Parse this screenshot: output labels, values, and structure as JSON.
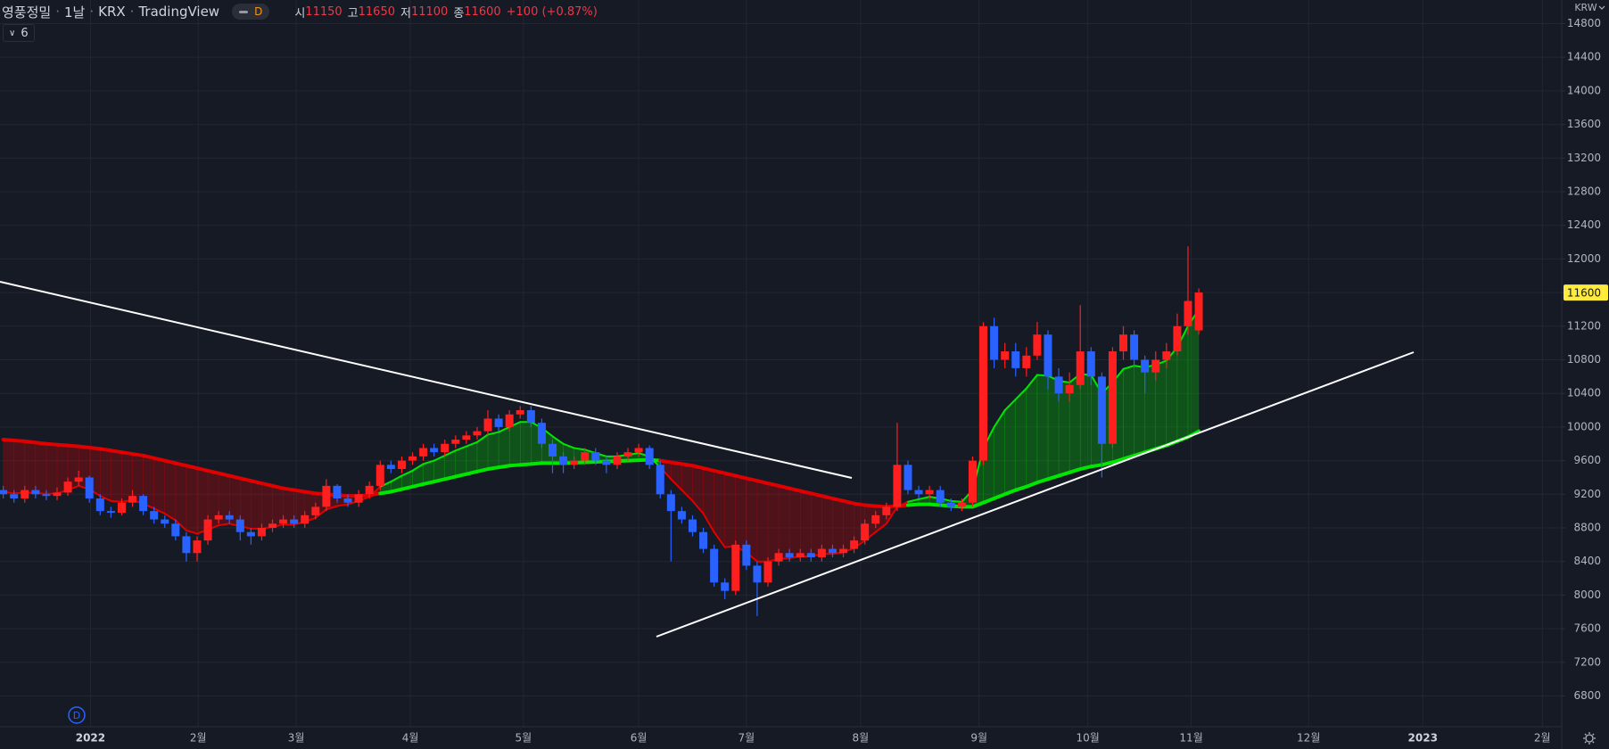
{
  "chart_data": {
    "type": "candlestick",
    "title": "영풍정밀",
    "separator": "·",
    "interval": "1날",
    "exchange": "KRX",
    "source": "TradingView",
    "badge": "D",
    "ohlc_labels": [
      "시",
      "고",
      "저",
      "종"
    ],
    "change_label": "+100 (+0.87%)",
    "currency": "KRW",
    "study_count": 6,
    "event_marker": "D",
    "up_color": "#ff1f1f",
    "down_color": "#2962ff",
    "grid": true,
    "xlim": [
      -0.3,
      144.7
    ],
    "xticks": [
      {
        "value": 8.1,
        "label": "2022"
      },
      {
        "value": 18.1,
        "label": "2월"
      },
      {
        "value": 27.2,
        "label": "3월"
      },
      {
        "value": 37.8,
        "label": "4월"
      },
      {
        "value": 48.3,
        "label": "5월"
      },
      {
        "value": 59,
        "label": "6월"
      },
      {
        "value": 69,
        "label": "7월"
      },
      {
        "value": 79.6,
        "label": "8월"
      },
      {
        "value": 90.6,
        "label": "9월"
      },
      {
        "value": 100.7,
        "label": "10월"
      },
      {
        "value": 110.3,
        "label": "11월"
      },
      {
        "value": 121.2,
        "label": "12월"
      },
      {
        "value": 131.8,
        "label": "2023"
      },
      {
        "value": 142.9,
        "label": "2월"
      }
    ],
    "ylim": [
      6434,
      15081
    ],
    "yticks": [
      6800,
      7200,
      7600,
      8000,
      8400,
      8800,
      9200,
      9600,
      10000,
      10400,
      10800,
      11200,
      11600,
      12000,
      12400,
      12800,
      13200,
      13600,
      14000,
      14400,
      14800
    ],
    "open": [
      9250,
      9200,
      9150,
      9250,
      9200,
      9180,
      9220,
      9350,
      9400,
      9150,
      9000,
      8980,
      9100,
      9180,
      9000,
      8900,
      8850,
      8700,
      8500,
      8650,
      8900,
      8950,
      8900,
      8750,
      8700,
      8800,
      8850,
      8900,
      8850,
      8950,
      9050,
      9300,
      9150,
      9100,
      9200,
      9300,
      9550,
      9500,
      9600,
      9650,
      9750,
      9700,
      9800,
      9850,
      9900,
      9950,
      10100,
      10000,
      10150,
      10200,
      10050,
      9800,
      9650,
      9550,
      9600,
      9700,
      9600,
      9550,
      9650,
      9700,
      9750,
      9550,
      9200,
      9000,
      8900,
      8750,
      8550,
      8150,
      8050,
      8600,
      8350,
      8150,
      8400,
      8500,
      8450,
      8500,
      8450,
      8550,
      8500,
      8550,
      8650,
      8850,
      8950,
      9050,
      9550,
      9250,
      9200,
      9250,
      9100,
      9050,
      9100,
      9600,
      11200,
      10800,
      10900,
      10700,
      10850,
      11100,
      10600,
      10400,
      10500,
      10900,
      10600,
      9800,
      10900,
      11100,
      10800,
      10650,
      10800,
      10900,
      11200,
      11150
    ],
    "high": [
      9300,
      9250,
      9300,
      9300,
      9250,
      9280,
      9400,
      9480,
      9420,
      9200,
      9050,
      9150,
      9250,
      9200,
      9050,
      8950,
      8900,
      8750,
      8700,
      8950,
      9000,
      9000,
      8950,
      8800,
      8850,
      8900,
      8950,
      8950,
      9000,
      9100,
      9380,
      9320,
      9200,
      9250,
      9350,
      9600,
      9600,
      9650,
      9700,
      9800,
      9800,
      9850,
      9900,
      9950,
      10000,
      10200,
      10150,
      10200,
      10250,
      10250,
      10100,
      9850,
      9700,
      9650,
      9750,
      9750,
      9650,
      9700,
      9750,
      9800,
      9780,
      9600,
      9250,
      9050,
      8950,
      8800,
      8600,
      8200,
      8650,
      8650,
      8400,
      8450,
      8550,
      8550,
      8550,
      8550,
      8600,
      8600,
      8600,
      8700,
      8900,
      9000,
      9100,
      10050,
      9600,
      9300,
      9300,
      9300,
      9150,
      9150,
      9650,
      11250,
      11300,
      11000,
      11000,
      10950,
      11250,
      11150,
      10700,
      10650,
      11450,
      10950,
      10650,
      10950,
      11200,
      11150,
      10850,
      10900,
      11000,
      11350,
      12150,
      11650
    ],
    "low": [
      9150,
      9100,
      9100,
      9150,
      9130,
      9130,
      9180,
      9300,
      9100,
      8950,
      8920,
      8950,
      9050,
      8950,
      8850,
      8800,
      8650,
      8400,
      8400,
      8600,
      8850,
      8850,
      8650,
      8600,
      8650,
      8750,
      8800,
      8800,
      8800,
      8900,
      9000,
      9100,
      9050,
      9050,
      9150,
      9250,
      9450,
      9450,
      9550,
      9600,
      9650,
      9650,
      9750,
      9800,
      9850,
      9900,
      9950,
      9950,
      10100,
      10000,
      9750,
      9450,
      9450,
      9500,
      9550,
      9550,
      9450,
      9500,
      9600,
      9650,
      9500,
      9150,
      8400,
      8850,
      8700,
      8500,
      8100,
      7950,
      8000,
      8300,
      7750,
      8100,
      8350,
      8400,
      8400,
      8400,
      8400,
      8450,
      8450,
      8500,
      8600,
      8800,
      8900,
      9000,
      9200,
      9150,
      9150,
      9050,
      9000,
      9000,
      9050,
      9550,
      10700,
      10700,
      10600,
      10600,
      10800,
      10450,
      10300,
      10300,
      10450,
      10500,
      9400,
      9750,
      10800,
      10700,
      10400,
      10550,
      10700,
      10850,
      11100,
      11100
    ],
    "close": [
      9200,
      9150,
      9250,
      9200,
      9180,
      9220,
      9350,
      9400,
      9150,
      9000,
      8980,
      9100,
      9180,
      9000,
      8900,
      8850,
      8700,
      8500,
      8650,
      8900,
      8950,
      8900,
      8750,
      8700,
      8800,
      8850,
      8900,
      8850,
      8950,
      9050,
      9300,
      9150,
      9100,
      9200,
      9300,
      9550,
      9500,
      9600,
      9650,
      9750,
      9700,
      9800,
      9850,
      9900,
      9950,
      10100,
      10000,
      10150,
      10200,
      10050,
      9800,
      9650,
      9550,
      9600,
      9700,
      9600,
      9550,
      9650,
      9700,
      9750,
      9550,
      9200,
      9000,
      8900,
      8750,
      8550,
      8150,
      8050,
      8600,
      8350,
      8150,
      8400,
      8500,
      8450,
      8500,
      8450,
      8550,
      8500,
      8550,
      8650,
      8850,
      8950,
      9050,
      9550,
      9250,
      9200,
      9250,
      9100,
      9050,
      9100,
      9600,
      11200,
      10800,
      10900,
      10700,
      10850,
      11100,
      10600,
      10400,
      10500,
      10900,
      10600,
      9800,
      10900,
      11100,
      10800,
      10650,
      10800,
      10900,
      11200,
      11500,
      11600
    ],
    "ribbon": {
      "up_color": "#00e600",
      "down_color": "#e00000",
      "fast": [
        9230,
        9210,
        9220,
        9215,
        9205,
        9210,
        9250,
        9300,
        9260,
        9180,
        9120,
        9110,
        9130,
        9090,
        9030,
        8970,
        8890,
        8770,
        8730,
        8780,
        8830,
        8850,
        8820,
        8790,
        8790,
        8810,
        8840,
        8840,
        8870,
        8920,
        9020,
        9060,
        9080,
        9120,
        9170,
        9290,
        9350,
        9420,
        9480,
        9560,
        9600,
        9660,
        9720,
        9770,
        9820,
        9910,
        9940,
        10000,
        10060,
        10060,
        9990,
        9890,
        9800,
        9750,
        9730,
        9690,
        9650,
        9650,
        9670,
        9690,
        9650,
        9520,
        9380,
        9250,
        9120,
        8970,
        8750,
        8570,
        8580,
        8510,
        8400,
        8400,
        8430,
        8440,
        8460,
        8460,
        8490,
        8490,
        8510,
        8560,
        8650,
        8750,
        8850,
        9050,
        9110,
        9140,
        9170,
        9150,
        9120,
        9110,
        9250,
        9750,
        10000,
        10200,
        10330,
        10460,
        10620,
        10610,
        10550,
        10530,
        10630,
        10620,
        10400,
        10530,
        10690,
        10730,
        10710,
        10740,
        10790,
        10950,
        11200,
        11400
      ],
      "slow": [
        9850,
        9840,
        9830,
        9815,
        9800,
        9790,
        9780,
        9770,
        9755,
        9740,
        9720,
        9700,
        9680,
        9660,
        9630,
        9600,
        9570,
        9540,
        9510,
        9480,
        9450,
        9420,
        9390,
        9360,
        9330,
        9300,
        9270,
        9250,
        9230,
        9210,
        9200,
        9190,
        9180,
        9180,
        9190,
        9210,
        9230,
        9260,
        9290,
        9320,
        9350,
        9380,
        9410,
        9440,
        9470,
        9500,
        9520,
        9540,
        9550,
        9560,
        9570,
        9570,
        9570,
        9575,
        9580,
        9585,
        9590,
        9595,
        9600,
        9605,
        9610,
        9600,
        9580,
        9560,
        9540,
        9510,
        9480,
        9450,
        9420,
        9390,
        9360,
        9330,
        9300,
        9270,
        9240,
        9210,
        9180,
        9150,
        9120,
        9090,
        9070,
        9060,
        9050,
        9060,
        9070,
        9080,
        9080,
        9070,
        9060,
        9050,
        9050,
        9100,
        9150,
        9200,
        9250,
        9290,
        9340,
        9380,
        9420,
        9460,
        9500,
        9530,
        9550,
        9580,
        9620,
        9660,
        9700,
        9740,
        9780,
        9830,
        9880,
        9950
      ]
    }
  }
}
